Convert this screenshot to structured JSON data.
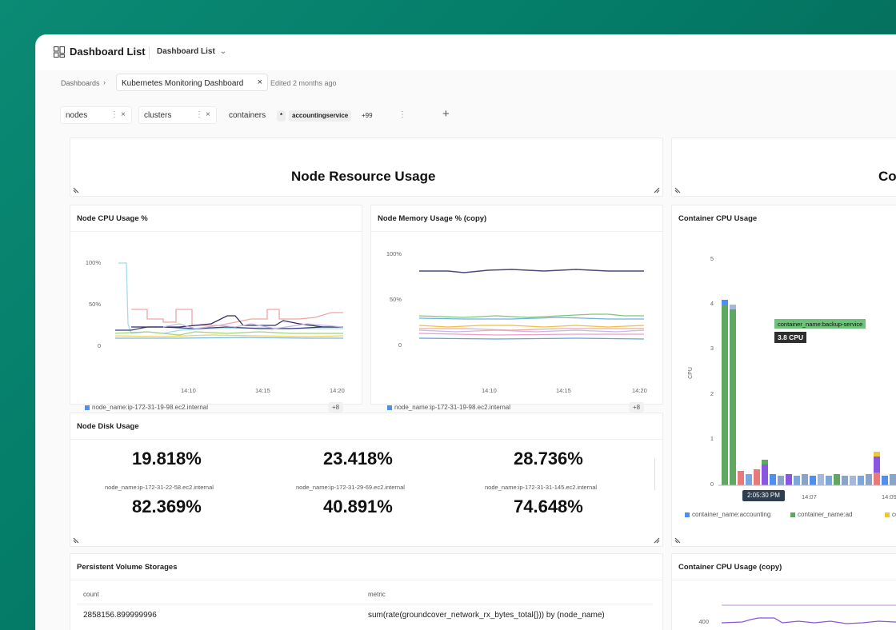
{
  "topbar": {
    "title": "Dashboard List",
    "dropdown_label": "Dashboard List"
  },
  "breadcrumb": {
    "root": "Dashboards",
    "current_tab": "Kubernetes Monitoring Dashboard",
    "edited": "Edited 2 months ago"
  },
  "filters": [
    {
      "label": "nodes"
    },
    {
      "label": "clusters"
    },
    {
      "label": "containers",
      "chip": "accountingservice",
      "more": "+99"
    }
  ],
  "sections": {
    "node_resource_title": "Node Resource Usage",
    "container_section_partial": "Co"
  },
  "cpu_panel": {
    "title": "Node CPU Usage %",
    "y_ticks": [
      "100%",
      "50%",
      "0"
    ],
    "x_ticks": [
      "14:10",
      "14:15",
      "14:20"
    ],
    "legend": "node_name:ip-172-31-19-98.ec2.internal",
    "more": "+8"
  },
  "mem_panel": {
    "title": "Node Memory Usage % (copy)",
    "y_ticks": [
      "100%",
      "50%",
      "0"
    ],
    "x_ticks": [
      "14:10",
      "14:15",
      "14:20"
    ],
    "legend": "node_name:ip-172-31-19-98.ec2.internal",
    "more": "+8"
  },
  "disk_panel": {
    "title": "Node Disk Usage",
    "stats": [
      {
        "top": "19.818%",
        "label": "node_name:ip-172-31-22-58.ec2.internal",
        "bottom": "82.369%"
      },
      {
        "top": "23.418%",
        "label": "node_name:ip-172-31-29-69.ec2.internal",
        "bottom": "40.891%"
      },
      {
        "top": "28.736%",
        "label": "node_name:ip-172-31-31-145.ec2.internal",
        "bottom": "74.648%"
      }
    ]
  },
  "container_cpu": {
    "title": "Container CPU Usage",
    "y_ticks": [
      "5",
      "4",
      "3",
      "2",
      "1",
      "0"
    ],
    "y_axis_label": "CPU",
    "x_ticks": [
      "14:07",
      "14:09"
    ],
    "tooltip_label": "container_name:backup-service",
    "tooltip_value": "3.8 CPU",
    "cursor_time": "2:05:30 PM",
    "legend": [
      "container_name:accounting",
      "container_name:ad",
      "conta"
    ],
    "colors": {
      "blue": "#4f8ff0",
      "green": "#5fa862",
      "yellow": "#f0c63a",
      "red": "#e97a7a",
      "purple": "#8a55e0"
    }
  },
  "pv_panel": {
    "title": "Persistent Volume Storages",
    "columns": [
      "count",
      "metric"
    ],
    "rows": [
      [
        "2858156.899999996",
        "sum(rate(groundcover_network_rx_bytes_total{})) by (node_name)"
      ]
    ]
  },
  "container_cpu_copy": {
    "title": "Container CPU Usage (copy)",
    "y_tick": "400"
  }
}
